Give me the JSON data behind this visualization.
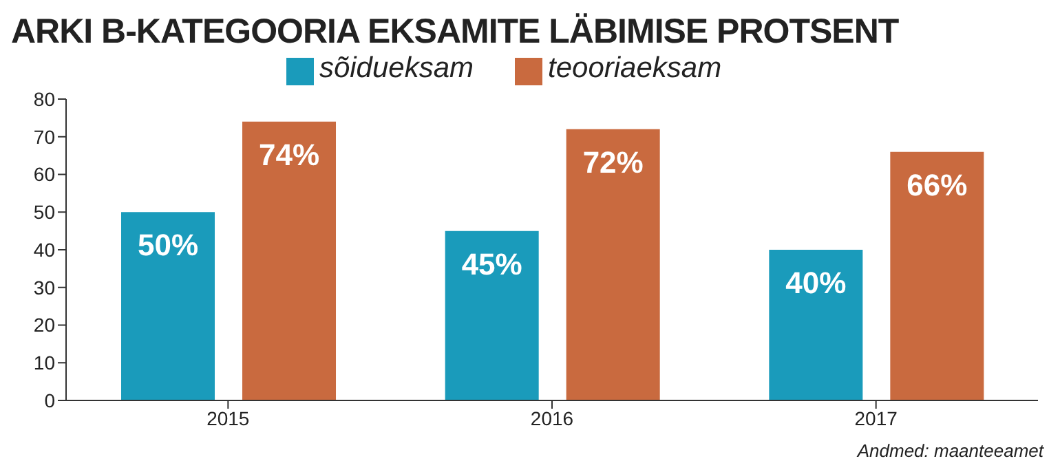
{
  "chart_data": {
    "type": "bar",
    "title": "ARKI B-KATEGOORIA EKSAMITE LÄBIMISE PROTSENT",
    "categories": [
      "2015",
      "2016",
      "2017"
    ],
    "series": [
      {
        "name": "sõidueksam",
        "color": "#1a9bbb",
        "values": [
          50,
          45,
          40
        ],
        "value_labels": [
          "50%",
          "45%",
          "40%"
        ]
      },
      {
        "name": "teooriaeksam",
        "color": "#c96a3f",
        "values": [
          74,
          72,
          66
        ],
        "value_labels": [
          "74%",
          "72%",
          "66%"
        ]
      }
    ],
    "ylim": [
      0,
      80
    ],
    "yticks": [
      0,
      10,
      20,
      30,
      40,
      50,
      60,
      70,
      80
    ],
    "grid": false,
    "legend": "top",
    "annotations": [
      "Andmed: maanteeamet"
    ]
  }
}
